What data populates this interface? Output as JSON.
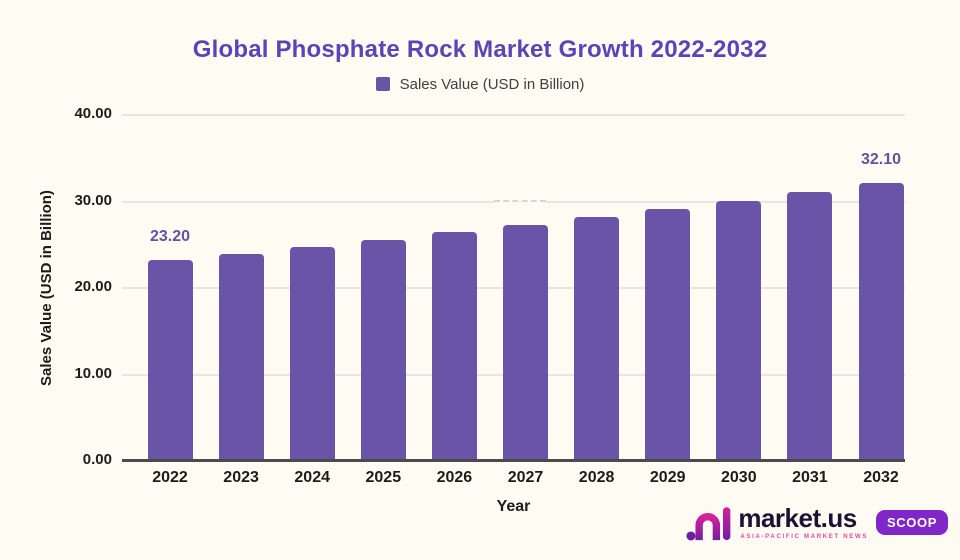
{
  "title": "Global Phosphate Rock Market Growth 2022-2032",
  "legend": {
    "label": "Sales Value (USD in Billion)",
    "swatch_color": "#6954a8"
  },
  "chart_data": {
    "type": "bar",
    "title": "Global Phosphate Rock Market Growth 2022-2032",
    "categories": [
      "2022",
      "2023",
      "2024",
      "2025",
      "2026",
      "2027",
      "2028",
      "2029",
      "2030",
      "2031",
      "2032"
    ],
    "values": [
      23.2,
      23.97,
      24.76,
      25.58,
      26.42,
      27.29,
      28.19,
      29.12,
      30.08,
      31.07,
      32.1
    ],
    "data_labels": [
      "23.20",
      "",
      "",
      "",
      "",
      "",
      "",
      "",
      "",
      "",
      "32.10"
    ],
    "xlabel": "Year",
    "ylabel": "Sales Value (USD in Billion)",
    "ylim": [
      0,
      40
    ],
    "yticks": [
      "0.00",
      "10.00",
      "20.00",
      "30.00",
      "40.00"
    ],
    "grid": "horizontal-only",
    "legend_position": "top-center",
    "bar_color": "#6954a8"
  },
  "colors": {
    "background": "#fefbf2",
    "title": "#5d43b8",
    "bar": "#6954a8",
    "data_label": "#5e54a4",
    "gridline": "#e6e6e6",
    "axis_baseline": "#4b4b4b"
  },
  "footer": {
    "brand": "market.us",
    "tagline": "ASIA-PACIFIC MARKET NEWS",
    "badge": "SCOOP"
  }
}
